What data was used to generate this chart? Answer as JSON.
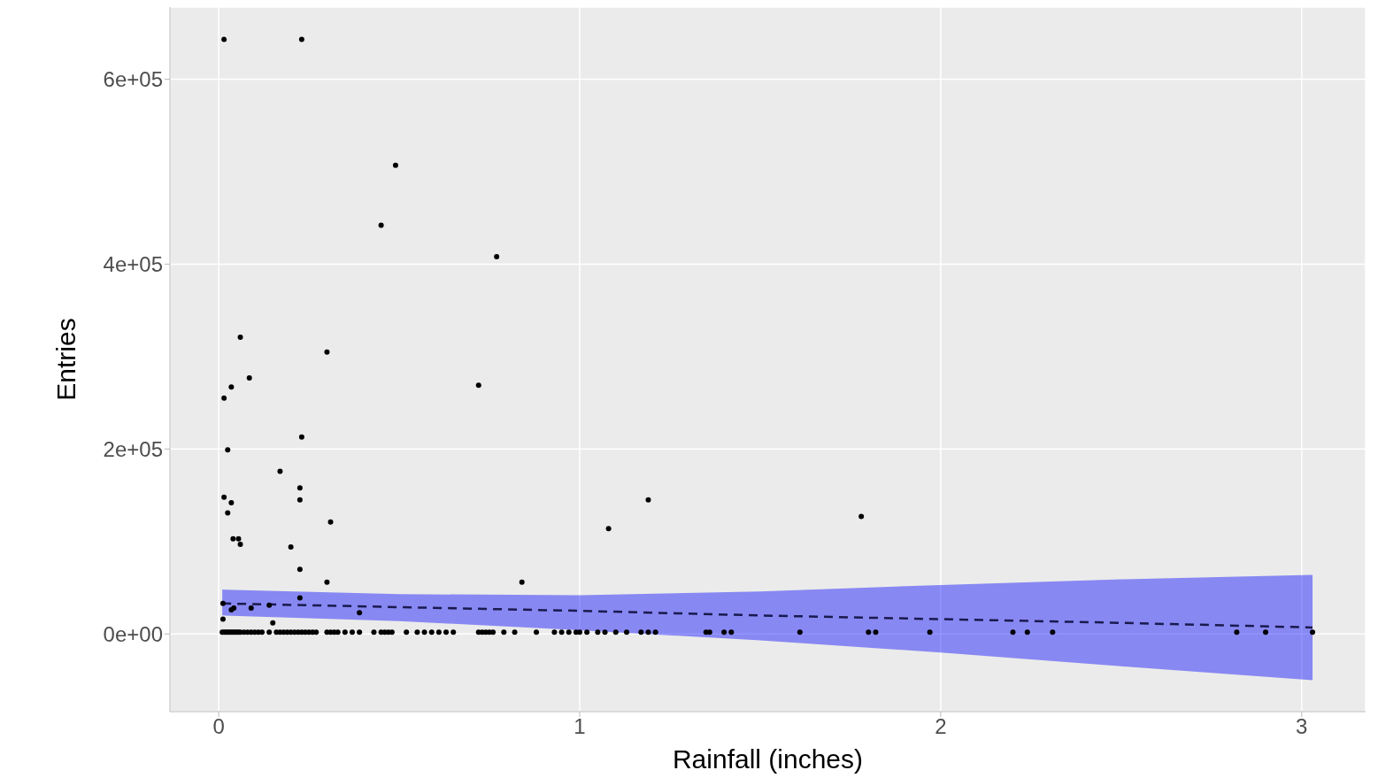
{
  "chart_data": {
    "type": "scatter",
    "xlabel": "Rainfall (inches)",
    "ylabel": "Entries",
    "xlim": [
      -0.135,
      3.177
    ],
    "ylim": [
      -84000,
      678000
    ],
    "xticks": [
      0,
      1,
      2,
      3
    ],
    "yticks": [
      {
        "value": 0,
        "label": "0e+00"
      },
      {
        "value": 200000,
        "label": "2e+05"
      },
      {
        "value": 400000,
        "label": "4e+05"
      },
      {
        "value": 600000,
        "label": "6e+05"
      }
    ],
    "grid": true,
    "marker": "circle",
    "series": [
      {
        "color": "#000000",
        "x": [
          0.015,
          0.23,
          0.49,
          0.45,
          0.77,
          0.06,
          0.3,
          0.085,
          0.035,
          0.015,
          0.72,
          0.025,
          0.23,
          0.17,
          0.225,
          0.225,
          0.015,
          0.035,
          0.025,
          0.31,
          0.04,
          0.055,
          0.06,
          0.2,
          0.225,
          0.3,
          0.84,
          1.08,
          1.19,
          1.78,
          0.012,
          0.035,
          0.042,
          0.09,
          0.14,
          0.225,
          0.012,
          0.15,
          0.39,
          0.01,
          0.015,
          0.02,
          0.025,
          0.03,
          0.035,
          0.04,
          0.045,
          0.05,
          0.055,
          0.06,
          0.07,
          0.08,
          0.09,
          0.1,
          0.11,
          0.12,
          0.14,
          0.16,
          0.17,
          0.18,
          0.19,
          0.2,
          0.21,
          0.22,
          0.23,
          0.24,
          0.25,
          0.26,
          0.27,
          0.3,
          0.31,
          0.32,
          0.33,
          0.35,
          0.37,
          0.39,
          0.43,
          0.45,
          0.46,
          0.47,
          0.48,
          0.52,
          0.55,
          0.57,
          0.59,
          0.61,
          0.63,
          0.65,
          0.72,
          0.73,
          0.74,
          0.75,
          0.76,
          0.79,
          0.82,
          0.88,
          0.93,
          0.95,
          0.97,
          0.99,
          1.0,
          1.02,
          1.05,
          1.07,
          1.1,
          1.13,
          1.17,
          1.19,
          1.21,
          1.35,
          1.36,
          1.4,
          1.42,
          1.61,
          1.8,
          1.82,
          1.97,
          2.2,
          2.24,
          2.31,
          2.82,
          2.9,
          3.03
        ],
        "values": [
          643000,
          643000,
          507000,
          442000,
          408000,
          321000,
          305000,
          277000,
          267000,
          255000,
          269000,
          199000,
          213000,
          176000,
          158000,
          145000,
          148000,
          142000,
          131000,
          121000,
          103000,
          103000,
          97000,
          94000,
          70000,
          56000,
          56000,
          114000,
          145000,
          127000,
          33000,
          26000,
          28000,
          28000,
          31000,
          39000,
          16000,
          12000,
          23000,
          2000,
          2000,
          2000,
          2000,
          2000,
          2000,
          2000,
          2000,
          2000,
          2000,
          2000,
          2000,
          2000,
          2000,
          2000,
          2000,
          2000,
          2000,
          2000,
          2000,
          2000,
          2000,
          2000,
          2000,
          2000,
          2000,
          2000,
          2000,
          2000,
          2000,
          2000,
          2000,
          2000,
          2000,
          2000,
          2000,
          2000,
          2000,
          2000,
          2000,
          2000,
          2000,
          2000,
          2000,
          2000,
          2000,
          2000,
          2000,
          2000,
          2000,
          2000,
          2000,
          2000,
          2000,
          2000,
          2000,
          2000,
          2000,
          2000,
          2000,
          2000,
          2000,
          2000,
          2000,
          2000,
          2000,
          2000,
          2000,
          2000,
          2000,
          2000,
          2000,
          2000,
          2000,
          2000,
          2000,
          2000,
          2000,
          2000,
          2000,
          2000,
          2000,
          2000,
          2000
        ]
      },
      {
        "type": "line",
        "color": "#1a1a4f",
        "line_style": "dashed",
        "marker": "none",
        "x": [
          0.01,
          0.5,
          1,
          1.5,
          2,
          2.5,
          3.03
        ],
        "values": [
          33000,
          29000,
          25000,
          20000,
          16000,
          12000,
          7000
        ],
        "lower": [
          20000,
          14000,
          4000,
          -7000,
          -20000,
          -35000,
          -50000
        ],
        "upper": [
          48000,
          43000,
          42000,
          46000,
          53000,
          59000,
          64000
        ]
      }
    ]
  }
}
